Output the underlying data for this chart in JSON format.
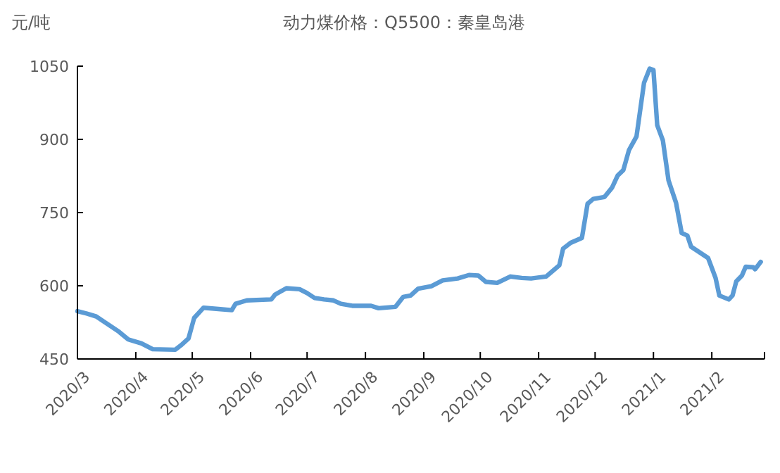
{
  "chart_data": {
    "type": "line",
    "title": "动力煤价格：Q5500：秦皇岛港",
    "ylabel": "元/吨",
    "x": [
      "2020-03-01",
      "2020-03-06",
      "2020-03-11",
      "2020-03-16",
      "2020-03-23",
      "2020-03-28",
      "2020-04-04",
      "2020-04-10",
      "2020-04-22",
      "2020-04-25",
      "2020-04-29",
      "2020-05-02",
      "2020-05-07",
      "2020-05-16",
      "2020-05-22",
      "2020-05-24",
      "2020-05-30",
      "2020-06-12",
      "2020-06-14",
      "2020-06-20",
      "2020-06-27",
      "2020-07-01",
      "2020-07-05",
      "2020-07-10",
      "2020-07-15",
      "2020-07-19",
      "2020-07-25",
      "2020-08-04",
      "2020-08-08",
      "2020-08-17",
      "2020-08-21",
      "2020-08-25",
      "2020-08-29",
      "2020-09-05",
      "2020-09-11",
      "2020-09-19",
      "2020-09-25",
      "2020-09-30",
      "2020-10-04",
      "2020-10-10",
      "2020-10-17",
      "2020-10-23",
      "2020-10-28",
      "2020-11-05",
      "2020-11-09",
      "2020-11-12",
      "2020-11-14",
      "2020-11-18",
      "2020-11-24",
      "2020-11-27",
      "2020-11-30",
      "2020-12-06",
      "2020-12-10",
      "2020-12-13",
      "2020-12-16",
      "2020-12-19",
      "2020-12-23",
      "2020-12-27",
      "2020-12-30",
      "2021-01-01",
      "2021-01-03",
      "2021-01-06",
      "2021-01-09",
      "2021-01-13",
      "2021-01-16",
      "2021-01-19",
      "2021-01-21",
      "2021-01-30",
      "2021-02-03",
      "2021-02-05",
      "2021-02-10",
      "2021-02-12",
      "2021-02-14",
      "2021-02-17",
      "2021-02-19",
      "2021-02-23",
      "2021-02-24",
      "2021-02-27"
    ],
    "series": [
      {
        "color": "#5b9bd5",
        "values": [
          548,
          543,
          537,
          524,
          506,
          490,
          482,
          470,
          469,
          478,
          492,
          534,
          555,
          552,
          550,
          563,
          570,
          572,
          582,
          595,
          593,
          585,
          575,
          572,
          570,
          563,
          559,
          559,
          554,
          557,
          577,
          580,
          594,
          599,
          611,
          615,
          622,
          621,
          608,
          606,
          619,
          616,
          615,
          619,
          632,
          642,
          676,
          688,
          698,
          768,
          778,
          782,
          801,
          826,
          837,
          878,
          906,
          1016,
          1045,
          1042,
          929,
          898,
          816,
          770,
          708,
          703,
          680,
          657,
          616,
          580,
          572,
          580,
          609,
          621,
          639,
          638,
          634,
          649
        ]
      }
    ],
    "xlim": [
      "2020-03-01",
      "2021-03-01"
    ],
    "xticks": [
      {
        "value": "2020-03-01",
        "label": "2020/3"
      },
      {
        "value": "2020-04-01",
        "label": "2020/4"
      },
      {
        "value": "2020-05-01",
        "label": "2020/5"
      },
      {
        "value": "2020-06-01",
        "label": "2020/6"
      },
      {
        "value": "2020-07-01",
        "label": "2020/7"
      },
      {
        "value": "2020-08-01",
        "label": "2020/8"
      },
      {
        "value": "2020-09-01",
        "label": "2020/9"
      },
      {
        "value": "2020-10-01",
        "label": "2020/10"
      },
      {
        "value": "2020-11-01",
        "label": "2020/11"
      },
      {
        "value": "2020-12-01",
        "label": "2020/12"
      },
      {
        "value": "2021-01-01",
        "label": "2021/1"
      },
      {
        "value": "2021-02-01",
        "label": "2021/2"
      },
      {
        "value": "2021-03-01",
        "label": null
      }
    ],
    "ylim": [
      450,
      1050
    ],
    "yticks": [
      450,
      600,
      750,
      900,
      1050
    ],
    "grid": false,
    "marker": "none",
    "line_style": "solid"
  }
}
